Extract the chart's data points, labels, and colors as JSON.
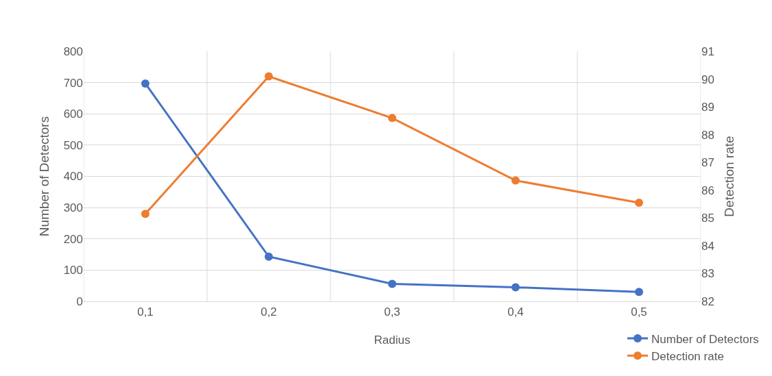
{
  "chart_data": {
    "type": "line",
    "xlabel": "Radius",
    "ylabel": "Number of Detectors",
    "y2label": "Detection rate",
    "categories": [
      "0,1",
      "0,2",
      "0,3",
      "0,4",
      "0,5"
    ],
    "series": [
      {
        "name": "Number of Detectors",
        "color": "#4472c4",
        "values": [
          697,
          143,
          56,
          45,
          30
        ]
      },
      {
        "name": "Detection rate",
        "color": "#ed7d31",
        "axis": "y2",
        "values": [
          85.15,
          90.1,
          88.6,
          86.35,
          85.55
        ]
      }
    ],
    "ylim": [
      0,
      800
    ],
    "yticks": [
      0,
      100,
      200,
      300,
      400,
      500,
      600,
      700,
      800
    ],
    "y2lim": [
      82,
      91
    ],
    "y2ticks": [
      82,
      83,
      84,
      85,
      86,
      87,
      88,
      89,
      90,
      91
    ],
    "grid": true,
    "legend": "bottom right",
    "marker": "circle",
    "line_style": "solid"
  }
}
